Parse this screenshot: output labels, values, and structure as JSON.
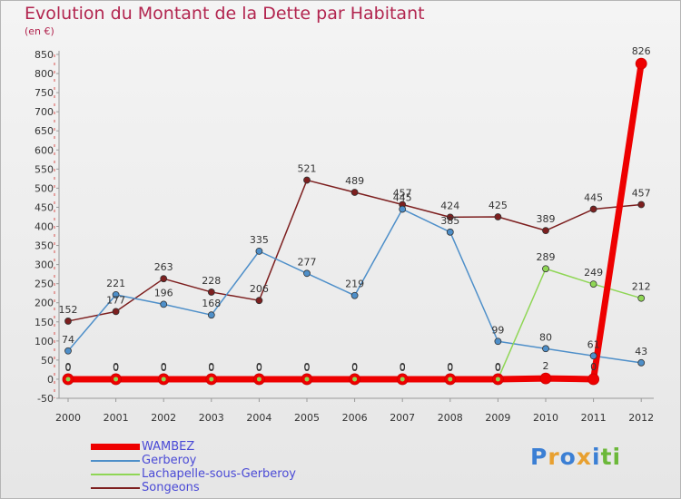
{
  "chart_data": {
    "type": "line",
    "title": "Evolution du Montant de la Dette par Habitant",
    "subtitle": "(en €)",
    "categories": [
      "2000",
      "2001",
      "2002",
      "2003",
      "2004",
      "2005",
      "2006",
      "2007",
      "2008",
      "2009",
      "2010",
      "2011",
      "2012"
    ],
    "ylim": [
      -50,
      850
    ],
    "yticks": [
      -50,
      0,
      50,
      100,
      150,
      200,
      250,
      300,
      350,
      400,
      450,
      500,
      550,
      600,
      650,
      700,
      750,
      800,
      850
    ],
    "grid": false,
    "legend_position": "bottom-left",
    "series": [
      {
        "name": "WAMBEZ",
        "color": "#ee0000",
        "values": [
          0,
          0,
          0,
          0,
          0,
          0,
          0,
          0,
          0,
          0,
          2,
          0,
          826
        ],
        "labels": [
          "0",
          "0",
          "0",
          "0",
          "0",
          "0",
          "0",
          "0",
          "0",
          "0",
          "2",
          "0",
          "826"
        ]
      },
      {
        "name": "Gerberoy",
        "color": "#4e8fc9",
        "values": [
          74,
          221,
          196,
          168,
          335,
          277,
          219,
          445,
          385,
          99,
          80,
          61,
          43
        ],
        "labels": [
          "74",
          "221",
          "196",
          "168",
          "335",
          "277",
          "219",
          "445",
          "385",
          "99",
          "80",
          "61",
          "43"
        ]
      },
      {
        "name": "Lachapelle-sous-Gerberoy",
        "color": "#8fd655",
        "values": [
          0,
          0,
          0,
          0,
          0,
          0,
          0,
          0,
          0,
          0,
          289,
          249,
          212
        ],
        "labels": [
          "0",
          "0",
          "0",
          "0",
          "0",
          "0",
          "0",
          "0",
          "0",
          "0",
          "289",
          "249",
          "212"
        ]
      },
      {
        "name": "Songeons",
        "color": "#7d1f1f",
        "values": [
          152,
          177,
          263,
          228,
          206,
          521,
          489,
          457,
          424,
          425,
          389,
          445,
          457
        ],
        "labels": [
          "152",
          "177",
          "263",
          "228",
          "206",
          "521",
          "489",
          "457",
          "424",
          "425",
          "389",
          "445",
          "457"
        ]
      }
    ]
  },
  "logo": {
    "letters": [
      "P",
      "r",
      "o",
      "x",
      "i",
      "t",
      "i"
    ],
    "colors": [
      "#3b7fd4",
      "#e8a030",
      "#3b7fd4",
      "#e8a030",
      "#3b7fd4",
      "#6cb83a",
      "#6cb83a"
    ]
  }
}
